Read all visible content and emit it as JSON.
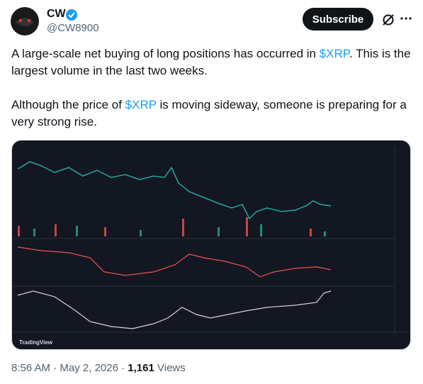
{
  "user": {
    "name": "CW",
    "handle": "@CW8900"
  },
  "button": "Subscribe",
  "paragraphs": [
    [
      "A large-scale net buying of long positions has occurred in ",
      "$XRP",
      ". This is the largest volume in the last two weeks."
    ],
    [
      "Although the price of ",
      "$XRP",
      " is moving sideway, someone is preparing for a very strong rise."
    ]
  ],
  "image": {
    "watermark": "TradingView"
  },
  "footer": {
    "time": "8:56 AM",
    "separator": "·",
    "date": "May 2, 2026",
    "views_count": "1,161",
    "views_label": "Views"
  }
}
